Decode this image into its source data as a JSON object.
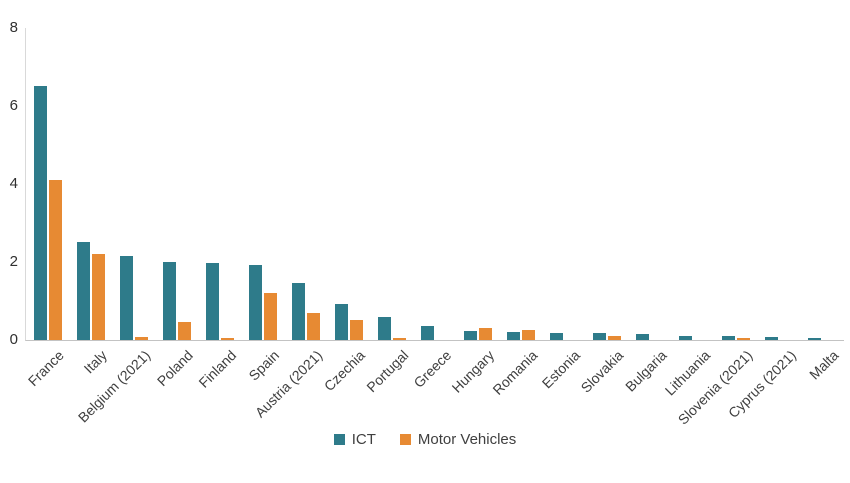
{
  "chart_data": {
    "type": "bar",
    "title": "",
    "xlabel": "",
    "ylabel": "",
    "ylim": [
      0,
      8
    ],
    "yticks": [
      0,
      2,
      4,
      6,
      8
    ],
    "grid": false,
    "legend_position": "bottom",
    "categories": [
      "France",
      "Italy",
      "Belgium (2021)",
      "Poland",
      "Finland",
      "Spain",
      "Austria (2021)",
      "Czechia",
      "Portugal",
      "Greece",
      "Hungary",
      "Romania",
      "Estonia",
      "Slovakia",
      "Bulgaria",
      "Lithuania",
      "Slovenia (2021)",
      "Cyprus (2021)",
      "Malta"
    ],
    "series": [
      {
        "name": "ICT",
        "color": "#2E7B8A",
        "values": [
          6.5,
          2.5,
          2.15,
          2.0,
          1.97,
          1.93,
          1.47,
          0.93,
          0.6,
          0.35,
          0.23,
          0.2,
          0.18,
          0.17,
          0.15,
          0.1,
          0.09,
          0.07,
          0.04
        ]
      },
      {
        "name": "Motor Vehicles",
        "color": "#E78A33",
        "values": [
          4.1,
          2.2,
          0.07,
          0.45,
          0.05,
          1.2,
          0.7,
          0.5,
          0.05,
          0,
          0.3,
          0.25,
          0,
          0.1,
          0,
          0,
          0.06,
          0,
          0
        ]
      }
    ],
    "colors": {
      "axis_line": "#d9d9d9",
      "baseline": "#c3c3c3",
      "tick_text": "#303030",
      "category_text": "#3f3f3f"
    }
  }
}
